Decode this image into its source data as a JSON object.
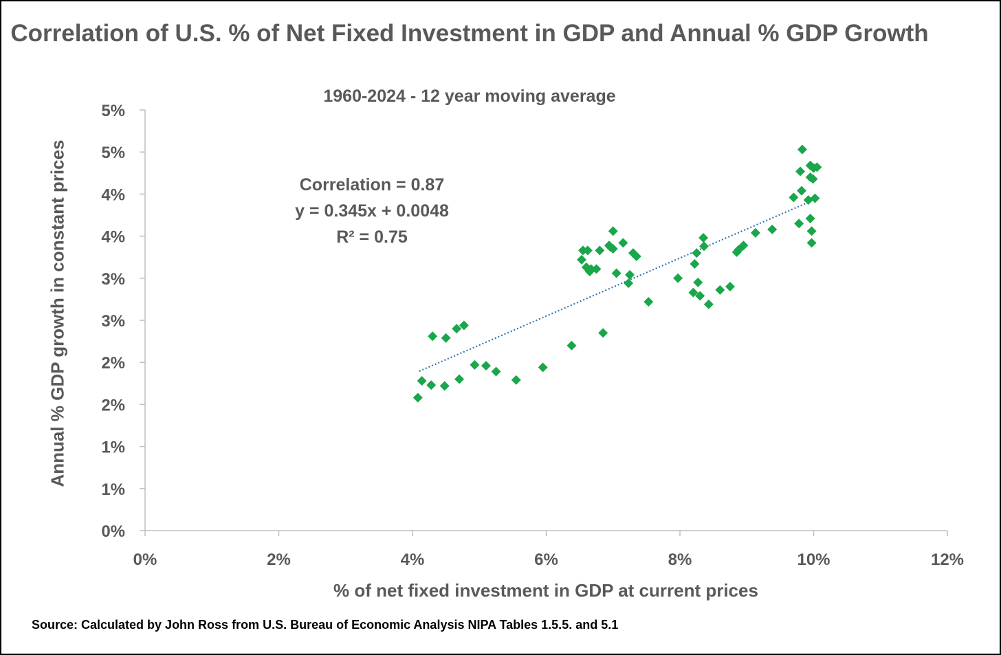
{
  "chart_data": {
    "type": "scatter",
    "title": "Correlation of U.S. % of Net Fixed Investment in GDP and Annual % GDP Growth",
    "subtitle": "1960-2024 - 12 year moving average",
    "xlabel": "% of net fixed investment in GDP at current prices",
    "ylabel": "Annual % GDP growth in constant prices",
    "source": "Source: Calculated by John Ross from U.S. Bureau of Economic Analysis NIPA Tables 1.5.5. and 5.1",
    "xlim": [
      0,
      12
    ],
    "ylim": [
      0,
      5
    ],
    "x_ticks": [
      0,
      2,
      4,
      6,
      8,
      10,
      12
    ],
    "x_tick_labels": [
      "0%",
      "2%",
      "4%",
      "6%",
      "8%",
      "10%",
      "12%"
    ],
    "y_ticks": [
      0,
      0.5,
      1,
      1.5,
      2,
      2.5,
      3,
      3.5,
      4,
      4.5,
      5
    ],
    "y_tick_labels": [
      "0%",
      "1%",
      "1%",
      "2%",
      "2%",
      "3%",
      "3%",
      "4%",
      "4%",
      "5%",
      "5%"
    ],
    "grid": false,
    "legend": "none",
    "marker_color": "#1aa64b",
    "trendline_color": "#2e75b6",
    "annotation": [
      "Correlation = 0.87",
      "y = 0.345x + 0.0048",
      "R² = 0.75"
    ],
    "trendline": {
      "slope": 0.345,
      "intercept": 0.48,
      "x_range": [
        4.1,
        10.0
      ]
    },
    "series": [
      {
        "points": [
          [
            4.08,
            1.58
          ],
          [
            4.14,
            1.78
          ],
          [
            4.28,
            1.73
          ],
          [
            4.3,
            2.31
          ],
          [
            4.48,
            1.72
          ],
          [
            4.5,
            2.29
          ],
          [
            4.66,
            2.4
          ],
          [
            4.7,
            1.8
          ],
          [
            4.77,
            2.44
          ],
          [
            4.93,
            1.97
          ],
          [
            5.1,
            1.96
          ],
          [
            5.25,
            1.89
          ],
          [
            5.55,
            1.79
          ],
          [
            5.95,
            1.94
          ],
          [
            6.38,
            2.2
          ],
          [
            6.53,
            3.22
          ],
          [
            6.55,
            3.33
          ],
          [
            6.6,
            3.13
          ],
          [
            6.62,
            3.33
          ],
          [
            6.65,
            3.08
          ],
          [
            6.67,
            3.11
          ],
          [
            6.75,
            3.11
          ],
          [
            6.8,
            3.33
          ],
          [
            6.85,
            2.35
          ],
          [
            6.94,
            3.39
          ],
          [
            6.96,
            3.37
          ],
          [
            7.0,
            3.56
          ],
          [
            7.0,
            3.35
          ],
          [
            7.05,
            3.06
          ],
          [
            7.15,
            3.42
          ],
          [
            7.23,
            2.94
          ],
          [
            7.25,
            3.04
          ],
          [
            7.3,
            3.3
          ],
          [
            7.35,
            3.26
          ],
          [
            7.53,
            2.72
          ],
          [
            7.97,
            3.0
          ],
          [
            8.2,
            2.83
          ],
          [
            8.22,
            3.17
          ],
          [
            8.25,
            3.3
          ],
          [
            8.27,
            2.95
          ],
          [
            8.3,
            2.79
          ],
          [
            8.35,
            3.48
          ],
          [
            8.36,
            3.38
          ],
          [
            8.43,
            2.69
          ],
          [
            8.6,
            2.86
          ],
          [
            8.75,
            2.9
          ],
          [
            8.85,
            3.31
          ],
          [
            8.88,
            3.34
          ],
          [
            8.95,
            3.39
          ],
          [
            9.13,
            3.54
          ],
          [
            9.38,
            3.58
          ],
          [
            9.7,
            3.96
          ],
          [
            9.78,
            3.65
          ],
          [
            9.8,
            4.27
          ],
          [
            9.82,
            4.04
          ],
          [
            9.83,
            4.53
          ],
          [
            9.92,
            3.93
          ],
          [
            9.95,
            4.2
          ],
          [
            9.95,
            4.34
          ],
          [
            9.95,
            3.71
          ],
          [
            9.97,
            3.56
          ],
          [
            9.97,
            3.42
          ],
          [
            9.99,
            4.18
          ],
          [
            10.0,
            4.31
          ],
          [
            10.02,
            3.95
          ],
          [
            10.05,
            4.32
          ]
        ]
      }
    ]
  }
}
